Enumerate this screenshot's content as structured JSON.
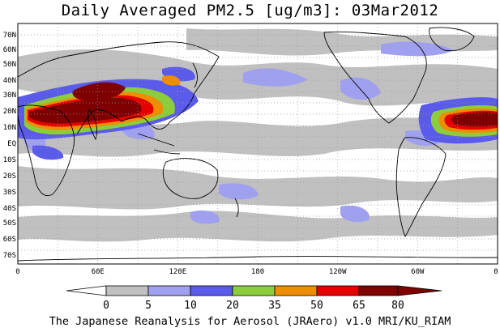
{
  "title": "Daily Averaged PM2.5 [ug/m3]: 03Mar2012",
  "footer": "The Japanese Reanalysis for Aerosol (JRAero) v1.0 MRI/KU_RIAM",
  "map": {
    "lat_labels": [
      "70N",
      "60N",
      "50N",
      "40N",
      "30N",
      "20N",
      "10N",
      "EQ",
      "10S",
      "20S",
      "30S",
      "40S",
      "50S",
      "60S",
      "70S"
    ],
    "lon_labels": [
      "0",
      "60E",
      "120E",
      "180",
      "120W",
      "60W",
      "0"
    ]
  },
  "legend": {
    "levels": [
      "0",
      "5",
      "10",
      "20",
      "35",
      "50",
      "65",
      "80"
    ],
    "colors": [
      "#ffffff",
      "#c0c0c0",
      "#a0a0f0",
      "#5a5aeb",
      "#8ccd3c",
      "#f08c00",
      "#e60000",
      "#7f0000"
    ]
  },
  "colors": {
    "land_outline": "#000000",
    "grid": "#999999"
  }
}
